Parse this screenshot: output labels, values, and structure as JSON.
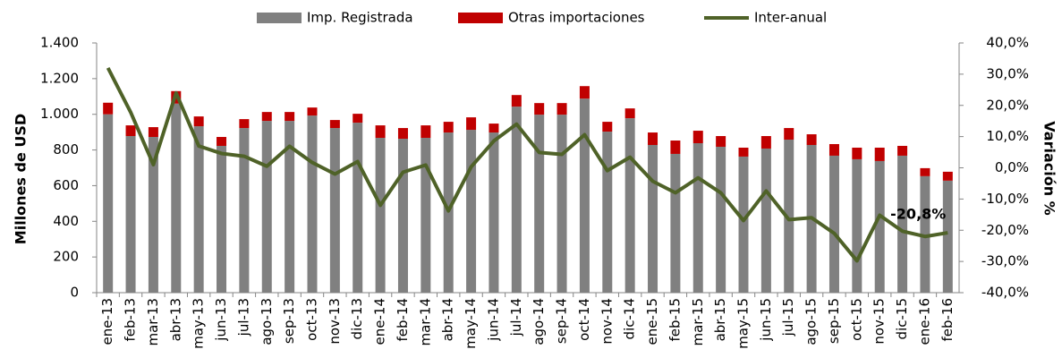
{
  "chart_data": {
    "type": "bar-line",
    "y_label": "Millones de USD",
    "y2_label": "Variación %",
    "categories": [
      "ene-13",
      "feb-13",
      "mar-13",
      "abr-13",
      "may-13",
      "jun-13",
      "jul-13",
      "ago-13",
      "sep-13",
      "oct-13",
      "nov-13",
      "dic-13",
      "ene-14",
      "feb-14",
      "mar-14",
      "abr-14",
      "may-14",
      "jun-14",
      "jul-14",
      "ago-14",
      "sep-14",
      "oct-14",
      "nov-14",
      "dic-14",
      "ene-15",
      "feb-15",
      "mar-15",
      "abr-15",
      "may-15",
      "jun-15",
      "jul-15",
      "ago-15",
      "sep-15",
      "oct-15",
      "nov-15",
      "dic-15",
      "ene-16",
      "feb-16"
    ],
    "series": [
      {
        "name": "Imp. Registrada",
        "color": "#808080",
        "kind": "bar",
        "values": [
          1000,
          878,
          873,
          1060,
          933,
          823,
          923,
          963,
          963,
          993,
          923,
          953,
          868,
          863,
          868,
          898,
          913,
          898,
          1043,
          998,
          998,
          1088,
          903,
          978,
          828,
          778,
          838,
          818,
          763,
          808,
          858,
          828,
          768,
          748,
          738,
          768,
          653,
          628
        ]
      },
      {
        "name": "Otras importaciones",
        "color": "#c00000",
        "kind": "bar",
        "values": [
          65,
          60,
          55,
          70,
          55,
          50,
          50,
          50,
          50,
          45,
          45,
          50,
          70,
          60,
          70,
          60,
          70,
          50,
          65,
          65,
          65,
          70,
          55,
          55,
          70,
          75,
          70,
          60,
          50,
          70,
          65,
          60,
          65,
          65,
          75,
          55,
          45,
          50
        ]
      },
      {
        "name": "Inter-anual",
        "color": "#4f6228",
        "kind": "line",
        "axis": "y2",
        "values": [
          32,
          17.8,
          1,
          24,
          7,
          4.6,
          3.7,
          0.5,
          6.9,
          1.7,
          -2,
          2,
          -12,
          -1.4,
          0.9,
          -13.8,
          0.3,
          8.6,
          14,
          4.9,
          4.3,
          10.6,
          -0.9,
          3.4,
          -4.3,
          -8,
          -3.2,
          -8,
          -16.9,
          -7.4,
          -16.6,
          -16,
          -21,
          -29.8,
          -15.2,
          -20.3,
          -22,
          -20.8
        ],
        "value_labels": [
          null,
          null,
          null,
          null,
          null,
          null,
          null,
          null,
          null,
          null,
          null,
          null,
          null,
          null,
          null,
          null,
          null,
          null,
          null,
          null,
          null,
          null,
          null,
          null,
          null,
          null,
          null,
          null,
          null,
          null,
          null,
          null,
          null,
          null,
          null,
          null,
          null,
          "-20,8%"
        ]
      }
    ],
    "ylim": [
      0,
      1400
    ],
    "yticks": [
      0,
      200,
      400,
      600,
      800,
      {
        "value": 1000,
        "label": "1.000"
      },
      {
        "value": 1200,
        "label": "1.200"
      },
      {
        "value": 1400,
        "label": "1.400"
      }
    ],
    "y2lim": [
      -40,
      40
    ],
    "y2ticks": [
      {
        "value": -40,
        "label": "-40,0%"
      },
      {
        "value": -30,
        "label": "-30,0%"
      },
      {
        "value": -20,
        "label": "-20,0%"
      },
      {
        "value": -10,
        "label": "-10,0%"
      },
      {
        "value": 0,
        "label": "0,0%"
      },
      {
        "value": 10,
        "label": "10,0%"
      },
      {
        "value": 20,
        "label": "20,0%"
      },
      {
        "value": 30,
        "label": "30,0%"
      },
      {
        "value": 40,
        "label": "40,0%"
      }
    ],
    "legend": "top",
    "grid": false
  }
}
